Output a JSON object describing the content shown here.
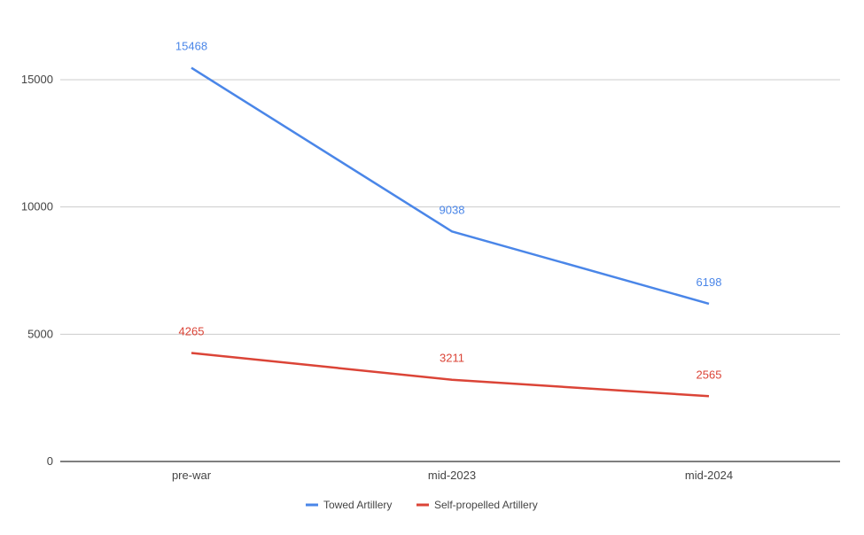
{
  "chart_data": {
    "type": "line",
    "title": "",
    "xlabel": "",
    "ylabel": "",
    "categories": [
      "pre-war",
      "mid-2023",
      "mid-2024"
    ],
    "ylim": [
      0,
      15000
    ],
    "yticks": [
      "0",
      "5000",
      "10000",
      "15000"
    ],
    "grid": true,
    "legend_position": "bottom",
    "series": [
      {
        "name": "Towed Artillery",
        "color": "#4a86e8",
        "values": [
          15468,
          9038,
          6198
        ]
      },
      {
        "name": "Self-propelled Artillery",
        "color": "#db4437",
        "values": [
          4265,
          3211,
          2565
        ]
      }
    ]
  }
}
